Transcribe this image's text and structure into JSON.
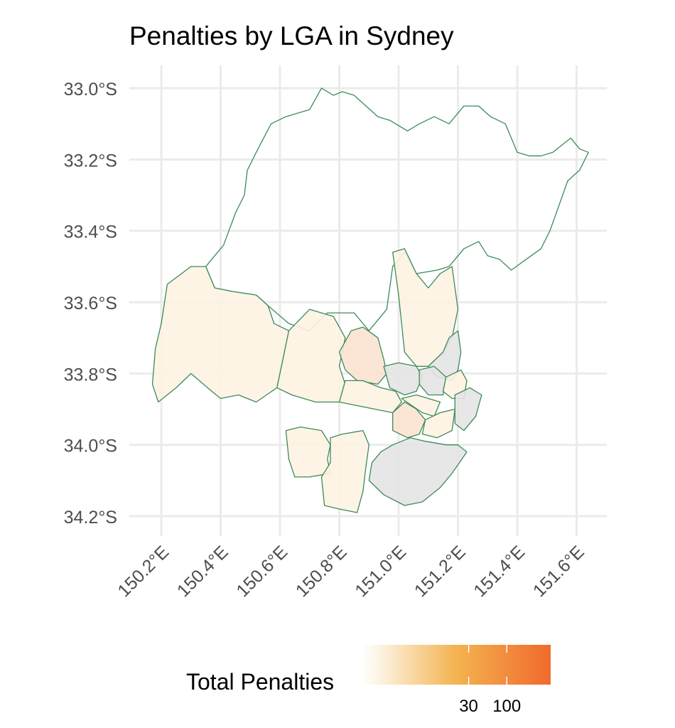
{
  "title": "Penalties by LGA in Sydney",
  "axes": {
    "lat_labels": [
      "33.0°S",
      "33.2°S",
      "33.4°S",
      "33.6°S",
      "33.8°S",
      "34.0°S",
      "34.2°S"
    ],
    "lat_values": [
      -33.0,
      -33.2,
      -33.4,
      -33.6,
      -33.8,
      -34.0,
      -34.2
    ],
    "lon_labels": [
      "150.2°E",
      "150.4°E",
      "150.6°E",
      "150.8°E",
      "151.0°E",
      "151.2°E",
      "151.4°E",
      "151.6°E"
    ],
    "lon_values": [
      150.2,
      150.4,
      150.6,
      150.8,
      151.0,
      151.2,
      151.4,
      151.6
    ],
    "lon_range": [
      150.15,
      151.7
    ],
    "lat_range": [
      -34.25,
      -32.95
    ],
    "grid": true
  },
  "legend": {
    "title": "Total Penalties",
    "tick_labels": [
      "30",
      "100"
    ],
    "tick_values": [
      30,
      100
    ],
    "scale": "log",
    "placement": "bottom",
    "colors": [
      "#fdf6e9",
      "#f4b350",
      "#f06a2c"
    ]
  },
  "colors": {
    "border": "#3d8a5a",
    "grid": "#ebebeb",
    "na_fill": "#e4e4e4",
    "no_data_fill": "#ffffff"
  },
  "regions": [
    {
      "level": "none",
      "points": [
        [
          150.74,
          -33.0
        ],
        [
          150.78,
          -33.02
        ],
        [
          150.81,
          -33.01
        ],
        [
          150.85,
          -33.02
        ],
        [
          150.89,
          -33.05
        ],
        [
          150.93,
          -33.08
        ],
        [
          150.97,
          -33.09
        ],
        [
          151.03,
          -33.12
        ],
        [
          151.07,
          -33.1
        ],
        [
          151.12,
          -33.08
        ],
        [
          151.17,
          -33.1
        ],
        [
          151.22,
          -33.05
        ],
        [
          151.27,
          -33.05
        ],
        [
          151.31,
          -33.08
        ],
        [
          151.36,
          -33.1
        ],
        [
          151.4,
          -33.18
        ],
        [
          151.44,
          -33.19
        ],
        [
          151.48,
          -33.19
        ],
        [
          151.52,
          -33.18
        ],
        [
          151.58,
          -33.14
        ],
        [
          151.61,
          -33.17
        ],
        [
          151.64,
          -33.18
        ],
        [
          151.61,
          -33.23
        ],
        [
          151.57,
          -33.26
        ],
        [
          151.54,
          -33.33
        ],
        [
          151.51,
          -33.4
        ],
        [
          151.48,
          -33.45
        ],
        [
          151.43,
          -33.48
        ],
        [
          151.38,
          -33.51
        ],
        [
          151.34,
          -33.48
        ],
        [
          151.3,
          -33.47
        ],
        [
          151.27,
          -33.43
        ],
        [
          151.22,
          -33.45
        ],
        [
          151.17,
          -33.5
        ],
        [
          151.13,
          -33.51
        ],
        [
          151.06,
          -33.52
        ],
        [
          151.02,
          -33.46
        ],
        [
          150.98,
          -33.5
        ],
        [
          150.96,
          -33.62
        ],
        [
          150.9,
          -33.68
        ],
        [
          150.85,
          -33.63
        ],
        [
          150.76,
          -33.63
        ],
        [
          150.7,
          -33.68
        ],
        [
          150.63,
          -33.66
        ],
        [
          150.56,
          -33.61
        ],
        [
          150.52,
          -33.58
        ],
        [
          150.44,
          -33.57
        ],
        [
          150.38,
          -33.56
        ],
        [
          150.35,
          -33.5
        ],
        [
          150.41,
          -33.44
        ],
        [
          150.45,
          -33.35
        ],
        [
          150.48,
          -33.3
        ],
        [
          150.49,
          -33.23
        ],
        [
          150.52,
          -33.18
        ],
        [
          150.57,
          -33.1
        ],
        [
          150.62,
          -33.08
        ],
        [
          150.66,
          -33.07
        ],
        [
          150.7,
          -33.06
        ]
      ]
    },
    {
      "level": "low",
      "points": [
        [
          150.22,
          -33.55
        ],
        [
          150.3,
          -33.5
        ],
        [
          150.35,
          -33.5
        ],
        [
          150.38,
          -33.56
        ],
        [
          150.44,
          -33.57
        ],
        [
          150.52,
          -33.58
        ],
        [
          150.56,
          -33.61
        ],
        [
          150.58,
          -33.66
        ],
        [
          150.63,
          -33.68
        ],
        [
          150.61,
          -33.76
        ],
        [
          150.59,
          -33.84
        ],
        [
          150.52,
          -33.88
        ],
        [
          150.46,
          -33.86
        ],
        [
          150.4,
          -33.87
        ],
        [
          150.37,
          -33.85
        ],
        [
          150.3,
          -33.8
        ],
        [
          150.25,
          -33.84
        ],
        [
          150.19,
          -33.88
        ],
        [
          150.17,
          -33.83
        ],
        [
          150.18,
          -33.73
        ],
        [
          150.2,
          -33.66
        ]
      ]
    },
    {
      "level": "low",
      "points": [
        [
          150.63,
          -33.68
        ],
        [
          150.7,
          -33.62
        ],
        [
          150.78,
          -33.64
        ],
        [
          150.82,
          -33.7
        ],
        [
          150.8,
          -33.78
        ],
        [
          150.82,
          -33.83
        ],
        [
          150.8,
          -33.88
        ],
        [
          150.72,
          -33.88
        ],
        [
          150.64,
          -33.86
        ],
        [
          150.59,
          -33.84
        ],
        [
          150.61,
          -33.76
        ]
      ]
    },
    {
      "level": "mid",
      "points": [
        [
          150.8,
          -33.74
        ],
        [
          150.84,
          -33.68
        ],
        [
          150.88,
          -33.67
        ],
        [
          150.93,
          -33.7
        ],
        [
          150.95,
          -33.76
        ],
        [
          150.96,
          -33.8
        ],
        [
          150.93,
          -33.83
        ],
        [
          150.86,
          -33.82
        ],
        [
          150.82,
          -33.79
        ]
      ]
    },
    {
      "level": "low",
      "points": [
        [
          150.82,
          -33.82
        ],
        [
          150.88,
          -33.82
        ],
        [
          150.94,
          -33.84
        ],
        [
          150.99,
          -33.85
        ],
        [
          151.01,
          -33.88
        ],
        [
          150.98,
          -33.91
        ],
        [
          150.92,
          -33.9
        ],
        [
          150.86,
          -33.89
        ],
        [
          150.8,
          -33.88
        ]
      ]
    },
    {
      "level": "low",
      "points": [
        [
          150.98,
          -33.46
        ],
        [
          151.02,
          -33.45
        ],
        [
          151.06,
          -33.52
        ],
        [
          151.1,
          -33.56
        ],
        [
          151.14,
          -33.52
        ],
        [
          151.18,
          -33.5
        ],
        [
          151.2,
          -33.62
        ],
        [
          151.18,
          -33.7
        ],
        [
          151.15,
          -33.74
        ],
        [
          151.1,
          -33.78
        ],
        [
          151.06,
          -33.78
        ],
        [
          151.02,
          -33.74
        ],
        [
          151.01,
          -33.66
        ],
        [
          151.0,
          -33.58
        ]
      ]
    },
    {
      "level": "na",
      "points": [
        [
          151.1,
          -33.78
        ],
        [
          151.15,
          -33.74
        ],
        [
          151.17,
          -33.7
        ],
        [
          151.2,
          -33.68
        ],
        [
          151.21,
          -33.74
        ],
        [
          151.2,
          -33.79
        ],
        [
          151.18,
          -33.82
        ],
        [
          151.13,
          -33.81
        ]
      ]
    },
    {
      "level": "na",
      "points": [
        [
          150.95,
          -33.78
        ],
        [
          151.0,
          -33.77
        ],
        [
          151.06,
          -33.78
        ],
        [
          151.08,
          -33.81
        ],
        [
          151.06,
          -33.85
        ],
        [
          151.02,
          -33.86
        ],
        [
          150.97,
          -33.84
        ]
      ]
    },
    {
      "level": "na",
      "points": [
        [
          151.07,
          -33.79
        ],
        [
          151.12,
          -33.78
        ],
        [
          151.16,
          -33.81
        ],
        [
          151.15,
          -33.86
        ],
        [
          151.1,
          -33.86
        ],
        [
          151.07,
          -33.83
        ]
      ]
    },
    {
      "level": "low",
      "points": [
        [
          151.16,
          -33.81
        ],
        [
          151.21,
          -33.79
        ],
        [
          151.23,
          -33.82
        ],
        [
          151.22,
          -33.87
        ],
        [
          151.18,
          -33.87
        ],
        [
          151.15,
          -33.85
        ]
      ]
    },
    {
      "level": "mid",
      "points": [
        [
          150.98,
          -33.91
        ],
        [
          151.02,
          -33.88
        ],
        [
          151.06,
          -33.9
        ],
        [
          151.09,
          -33.93
        ],
        [
          151.07,
          -33.97
        ],
        [
          151.03,
          -33.98
        ],
        [
          150.98,
          -33.96
        ]
      ]
    },
    {
      "level": "low",
      "points": [
        [
          151.01,
          -33.87
        ],
        [
          151.06,
          -33.86
        ],
        [
          151.1,
          -33.87
        ],
        [
          151.14,
          -33.88
        ],
        [
          151.12,
          -33.92
        ],
        [
          151.08,
          -33.91
        ]
      ]
    },
    {
      "level": "low",
      "points": [
        [
          151.09,
          -33.93
        ],
        [
          151.14,
          -33.91
        ],
        [
          151.19,
          -33.9
        ],
        [
          151.18,
          -33.96
        ],
        [
          151.13,
          -33.98
        ],
        [
          151.08,
          -33.97
        ]
      ]
    },
    {
      "level": "na",
      "points": [
        [
          151.19,
          -33.86
        ],
        [
          151.24,
          -33.84
        ],
        [
          151.28,
          -33.86
        ],
        [
          151.26,
          -33.92
        ],
        [
          151.22,
          -33.96
        ],
        [
          151.19,
          -33.94
        ]
      ]
    },
    {
      "level": "low",
      "points": [
        [
          150.62,
          -33.96
        ],
        [
          150.67,
          -33.95
        ],
        [
          150.74,
          -33.96
        ],
        [
          150.77,
          -34.0
        ],
        [
          150.76,
          -34.04
        ],
        [
          150.77,
          -34.08
        ],
        [
          150.7,
          -34.09
        ],
        [
          150.65,
          -34.09
        ],
        [
          150.63,
          -34.04
        ]
      ]
    },
    {
      "level": "low",
      "points": [
        [
          150.77,
          -33.98
        ],
        [
          150.81,
          -33.97
        ],
        [
          150.88,
          -33.96
        ],
        [
          150.9,
          -34.0
        ],
        [
          150.89,
          -34.06
        ],
        [
          150.88,
          -34.13
        ],
        [
          150.86,
          -34.19
        ],
        [
          150.8,
          -34.18
        ],
        [
          150.75,
          -34.17
        ],
        [
          150.74,
          -34.09
        ],
        [
          150.77,
          -34.05
        ]
      ]
    },
    {
      "level": "na",
      "points": [
        [
          150.94,
          -34.02
        ],
        [
          150.98,
          -34.0
        ],
        [
          151.04,
          -33.98
        ],
        [
          151.09,
          -33.99
        ],
        [
          151.16,
          -34.0
        ],
        [
          151.2,
          -34.0
        ],
        [
          151.23,
          -34.02
        ],
        [
          151.18,
          -34.08
        ],
        [
          151.14,
          -34.12
        ],
        [
          151.08,
          -34.16
        ],
        [
          151.02,
          -34.17
        ],
        [
          150.95,
          -34.14
        ],
        [
          150.9,
          -34.1
        ],
        [
          150.91,
          -34.05
        ]
      ]
    }
  ]
}
